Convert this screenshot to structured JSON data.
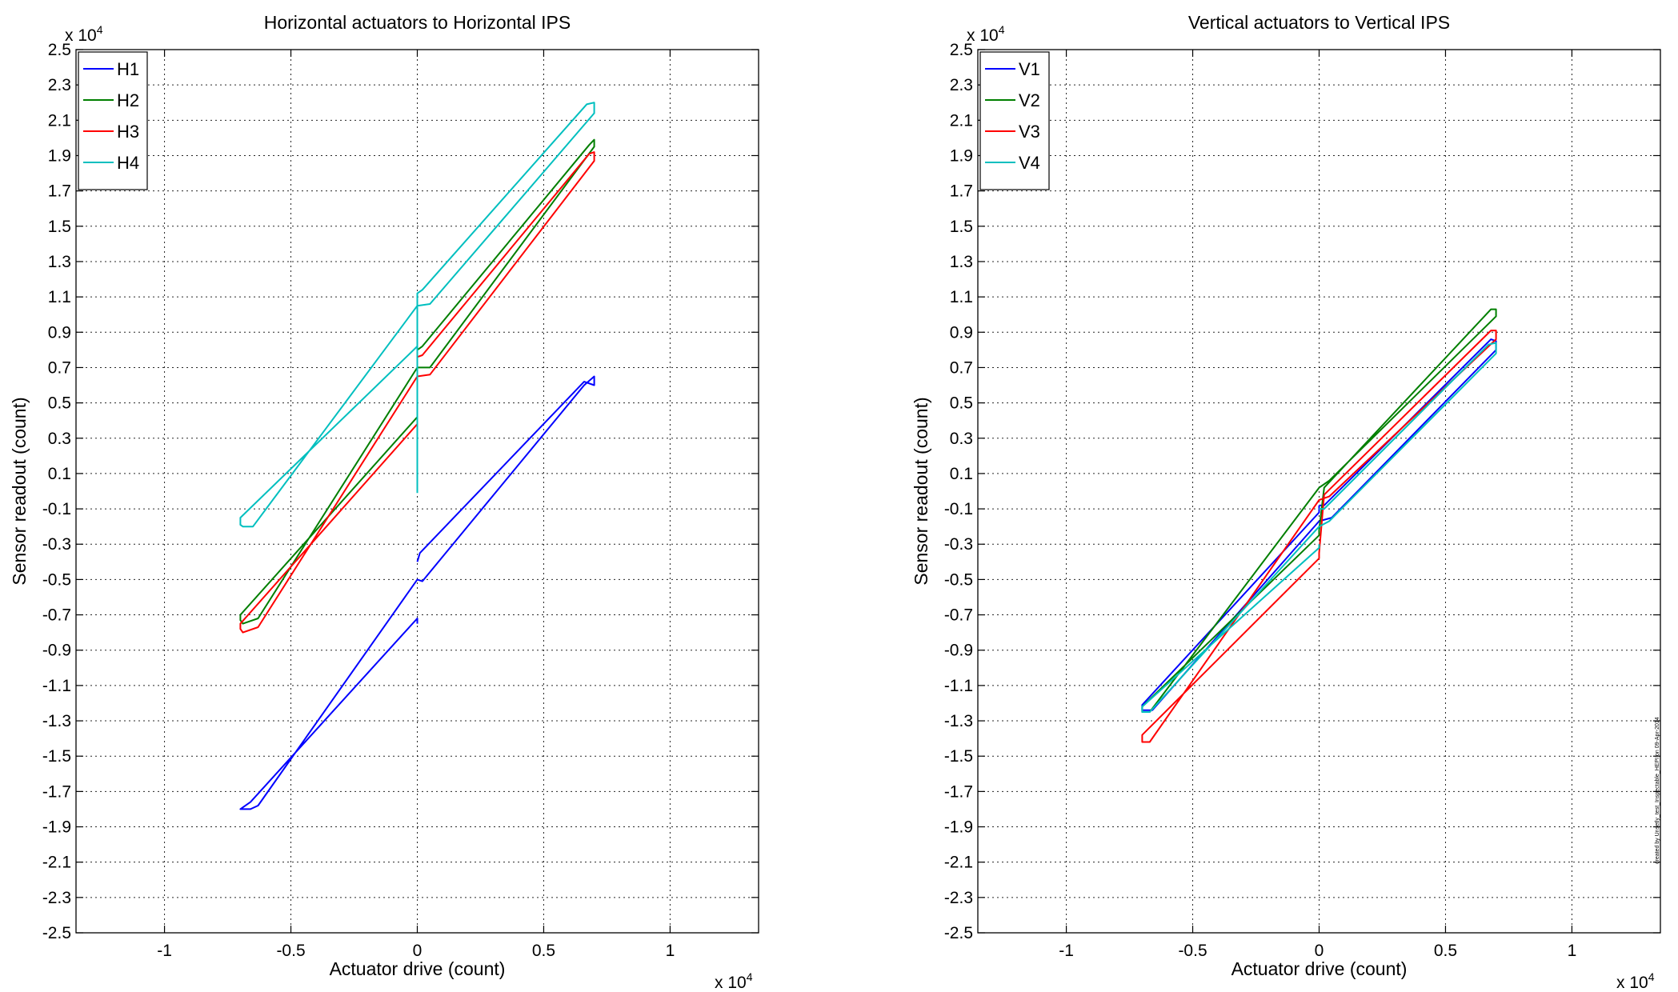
{
  "footnote": "created by Unsetly_test_Inspectable_HEPI on 09-Apr-2014",
  "chart_data": [
    {
      "type": "line",
      "title": "Horizontal actuators to Horizontal IPS",
      "xlabel": "Actuator drive (count)",
      "ylabel": "Sensor readout (count)",
      "x_multiplier": "x 10^4",
      "y_multiplier": "x 10^4",
      "xlim": [
        -1.35,
        1.35
      ],
      "ylim": [
        -2.5,
        2.5
      ],
      "xticks": [
        -1,
        -0.5,
        0,
        0.5,
        1
      ],
      "xtick_labels": [
        "-1",
        "-0.5",
        "0",
        "0.5",
        "1"
      ],
      "yticks": [
        -2.5,
        -2.3,
        -2.1,
        -1.9,
        -1.7,
        -1.5,
        -1.3,
        -1.1,
        -0.9,
        -0.7,
        -0.5,
        -0.3,
        -0.1,
        0.1,
        0.3,
        0.5,
        0.7,
        0.9,
        1.1,
        1.3,
        1.5,
        1.7,
        1.9,
        2.1,
        2.3,
        2.5
      ],
      "ytick_labels": [
        "-2.5",
        "-2.3",
        "-2.1",
        "-1.9",
        "-1.7",
        "-1.5",
        "-1.3",
        "-1.1",
        "-0.9",
        "-0.7",
        "-0.5",
        "-0.3",
        "-0.1",
        "0.1",
        "0.3",
        "0.5",
        "0.7",
        "0.9",
        "1.1",
        "1.3",
        "1.5",
        "1.7",
        "1.9",
        "2.1",
        "2.3",
        "2.5"
      ],
      "grid": true,
      "legend_position": "top-left",
      "series": [
        {
          "name": "H1",
          "color": "#0000ff",
          "points": [
            [
              0,
              -0.75
            ],
            [
              0,
              -0.72
            ],
            [
              -0.66,
              -1.76
            ],
            [
              -0.69,
              -1.79
            ],
            [
              -0.7,
              -1.8
            ],
            [
              -0.66,
              -1.8
            ],
            [
              -0.63,
              -1.78
            ],
            [
              0,
              -0.5
            ],
            [
              0.02,
              -0.51
            ],
            [
              0.66,
              0.6
            ],
            [
              0.7,
              0.65
            ],
            [
              0.7,
              0.6
            ],
            [
              0.66,
              0.62
            ],
            [
              0.01,
              -0.35
            ],
            [
              0,
              -0.4
            ]
          ]
        },
        {
          "name": "H2",
          "color": "#007f00",
          "points": [
            [
              0,
              0.45
            ],
            [
              0,
              0.42
            ],
            [
              -0.7,
              -0.7
            ],
            [
              -0.7,
              -0.73
            ],
            [
              -0.69,
              -0.75
            ],
            [
              -0.63,
              -0.72
            ],
            [
              0,
              0.7
            ],
            [
              0.05,
              0.7
            ],
            [
              0.7,
              1.95
            ],
            [
              0.7,
              1.99
            ],
            [
              0.68,
              1.96
            ],
            [
              0.02,
              0.82
            ],
            [
              0,
              0.8
            ]
          ]
        },
        {
          "name": "H3",
          "color": "#ff0000",
          "points": [
            [
              0,
              0.4
            ],
            [
              0,
              0.38
            ],
            [
              -0.7,
              -0.75
            ],
            [
              -0.7,
              -0.78
            ],
            [
              -0.69,
              -0.8
            ],
            [
              -0.63,
              -0.77
            ],
            [
              0,
              0.65
            ],
            [
              0.05,
              0.66
            ],
            [
              0.7,
              1.87
            ],
            [
              0.7,
              1.92
            ],
            [
              0.68,
              1.91
            ],
            [
              0.02,
              0.77
            ],
            [
              0,
              0.76
            ]
          ]
        },
        {
          "name": "H4",
          "color": "#00bfbf",
          "points": [
            [
              0,
              0.85
            ],
            [
              0,
              0.82
            ],
            [
              -0.7,
              -0.15
            ],
            [
              -0.7,
              -0.19
            ],
            [
              -0.69,
              -0.2
            ],
            [
              -0.65,
              -0.2
            ],
            [
              0,
              1.05
            ],
            [
              0.05,
              1.06
            ],
            [
              0.7,
              2.14
            ],
            [
              0.7,
              2.2
            ],
            [
              0.67,
              2.19
            ],
            [
              0.02,
              1.14
            ],
            [
              0,
              1.12
            ],
            [
              0,
              -0.01
            ]
          ]
        }
      ]
    },
    {
      "type": "line",
      "title": "Vertical actuators to Vertical IPS",
      "xlabel": "Actuator drive (count)",
      "ylabel": "Sensor readout (count)",
      "x_multiplier": "x 10^4",
      "y_multiplier": "x 10^4",
      "xlim": [
        -1.35,
        1.35
      ],
      "ylim": [
        -2.5,
        2.5
      ],
      "xticks": [
        -1,
        -0.5,
        0,
        0.5,
        1
      ],
      "xtick_labels": [
        "-1",
        "-0.5",
        "0",
        "0.5",
        "1"
      ],
      "yticks": [
        -2.5,
        -2.3,
        -2.1,
        -1.9,
        -1.7,
        -1.5,
        -1.3,
        -1.1,
        -0.9,
        -0.7,
        -0.5,
        -0.3,
        -0.1,
        0.1,
        0.3,
        0.5,
        0.7,
        0.9,
        1.1,
        1.3,
        1.5,
        1.7,
        1.9,
        2.1,
        2.3,
        2.5
      ],
      "ytick_labels": [
        "-2.5",
        "-2.3",
        "-2.1",
        "-1.9",
        "-1.7",
        "-1.5",
        "-1.3",
        "-1.1",
        "-0.9",
        "-0.7",
        "-0.5",
        "-0.3",
        "-0.1",
        "0.1",
        "0.3",
        "0.5",
        "0.7",
        "0.9",
        "1.1",
        "1.3",
        "1.5",
        "1.7",
        "1.9",
        "2.1",
        "2.3",
        "2.5"
      ],
      "grid": true,
      "legend_position": "top-left",
      "series": [
        {
          "name": "V1",
          "color": "#0000ff",
          "points": [
            [
              0,
              -0.08
            ],
            [
              0,
              -0.12
            ],
            [
              -0.7,
              -1.21
            ],
            [
              -0.7,
              -1.24
            ],
            [
              -0.66,
              -1.24
            ],
            [
              0,
              -0.17
            ],
            [
              0.05,
              -0.15
            ],
            [
              0.7,
              0.8
            ],
            [
              0.7,
              0.85
            ],
            [
              0.68,
              0.86
            ],
            [
              0.02,
              -0.08
            ],
            [
              0,
              -0.08
            ]
          ]
        },
        {
          "name": "V2",
          "color": "#007f00",
          "points": [
            [
              0,
              -0.22
            ],
            [
              0,
              -0.25
            ],
            [
              -0.7,
              -1.22
            ],
            [
              -0.7,
              -1.25
            ],
            [
              -0.67,
              -1.25
            ],
            [
              0,
              0.02
            ],
            [
              0.04,
              0.06
            ],
            [
              0.7,
              0.99
            ],
            [
              0.7,
              1.03
            ],
            [
              0.68,
              1.03
            ],
            [
              0.02,
              0.02
            ],
            [
              0,
              -0.22
            ]
          ]
        },
        {
          "name": "V3",
          "color": "#ff0000",
          "points": [
            [
              0,
              -0.35
            ],
            [
              0,
              -0.38
            ],
            [
              -0.7,
              -1.38
            ],
            [
              -0.7,
              -1.42
            ],
            [
              -0.67,
              -1.42
            ],
            [
              0,
              -0.05
            ],
            [
              0.04,
              -0.03
            ],
            [
              0.7,
              0.86
            ],
            [
              0.7,
              0.91
            ],
            [
              0.68,
              0.91
            ],
            [
              0.02,
              -0.02
            ],
            [
              0,
              -0.35
            ]
          ]
        },
        {
          "name": "V4",
          "color": "#00bfbf",
          "points": [
            [
              0,
              -0.3
            ],
            [
              0,
              -0.32
            ],
            [
              -0.7,
              -1.22
            ],
            [
              -0.7,
              -1.25
            ],
            [
              -0.67,
              -1.25
            ],
            [
              0,
              -0.2
            ],
            [
              0.04,
              -0.17
            ],
            [
              0.7,
              0.78
            ],
            [
              0.7,
              0.84
            ],
            [
              0.67,
              0.83
            ],
            [
              0.02,
              -0.1
            ],
            [
              0,
              -0.1
            ]
          ]
        }
      ]
    }
  ]
}
